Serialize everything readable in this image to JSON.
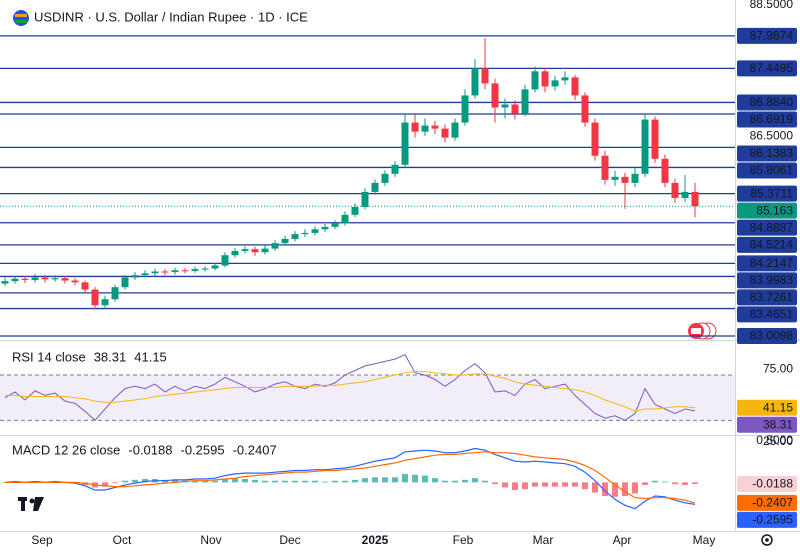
{
  "chart_data": [
    {
      "type": "candlestick",
      "title": "USDINR · U.S. Dollar / Indian Rupee · 1D · ICE",
      "up_color": "#089981",
      "down_color": "#f23645",
      "level_color": "#1f3c9a",
      "last_price_color": "#089981",
      "xlim": [
        -0.5,
        73
      ],
      "ylim": [
        82.944,
        88.583
      ],
      "yticks": [
        {
          "value": 88.5,
          "label": "88.5000"
        },
        {
          "value": 86.5,
          "label": "86.5000"
        }
      ],
      "xticks": [
        {
          "value": 3.7,
          "label": "Sep"
        },
        {
          "value": 11.7,
          "label": "Oct"
        },
        {
          "value": 20.6,
          "label": "Nov"
        },
        {
          "value": 28.5,
          "label": "Dec"
        },
        {
          "value": 37,
          "label": "2025"
        },
        {
          "value": 45.8,
          "label": "Feb"
        },
        {
          "value": 53.8,
          "label": "Mar"
        },
        {
          "value": 61.7,
          "label": "Apr"
        },
        {
          "value": 69.9,
          "label": "May"
        }
      ],
      "levels": [
        87.9874,
        87.4495,
        {
          "value": 86.884,
          "label": "86.8840"
        },
        86.6919,
        86.1383,
        85.8061,
        85.3711,
        84.8887,
        84.5214,
        84.2147,
        83.9983,
        83.7261,
        83.4651,
        83.0098
      ],
      "candles": [
        [
          83.88,
          83.98,
          83.84,
          83.92
        ],
        [
          83.92,
          84.0,
          83.88,
          83.96
        ],
        [
          83.96,
          84.01,
          83.89,
          83.94
        ],
        [
          83.94,
          84.04,
          83.9,
          83.98
        ],
        [
          83.98,
          84.02,
          83.9,
          83.95
        ],
        [
          83.95,
          84.02,
          83.91,
          83.97
        ],
        [
          83.97,
          84.0,
          83.88,
          83.93
        ],
        [
          83.93,
          83.97,
          83.85,
          83.9
        ],
        [
          83.9,
          83.93,
          83.72,
          83.78
        ],
        [
          83.78,
          83.82,
          83.45,
          83.52
        ],
        [
          83.52,
          83.68,
          83.46,
          83.62
        ],
        [
          83.62,
          83.86,
          83.58,
          83.82
        ],
        [
          83.82,
          84.02,
          83.78,
          83.98
        ],
        [
          83.98,
          84.07,
          83.94,
          84.02
        ],
        [
          84.02,
          84.1,
          83.98,
          84.05
        ],
        [
          84.05,
          84.13,
          84.01,
          84.08
        ],
        [
          84.08,
          84.12,
          84.02,
          84.07
        ],
        [
          84.07,
          84.14,
          84.03,
          84.1
        ],
        [
          84.1,
          84.14,
          84.05,
          84.09
        ],
        [
          84.09,
          84.16,
          84.06,
          84.12
        ],
        [
          84.12,
          84.17,
          84.08,
          84.13
        ],
        [
          84.13,
          84.22,
          84.1,
          84.18
        ],
        [
          84.18,
          84.4,
          84.15,
          84.35
        ],
        [
          84.35,
          84.47,
          84.31,
          84.42
        ],
        [
          84.42,
          84.5,
          84.38,
          84.45
        ],
        [
          84.45,
          84.49,
          84.34,
          84.4
        ],
        [
          84.4,
          84.51,
          84.36,
          84.46
        ],
        [
          84.46,
          84.6,
          84.42,
          84.55
        ],
        [
          84.55,
          84.67,
          84.51,
          84.62
        ],
        [
          84.62,
          84.75,
          84.58,
          84.7
        ],
        [
          84.7,
          84.78,
          84.65,
          84.72
        ],
        [
          84.72,
          84.83,
          84.68,
          84.78
        ],
        [
          84.78,
          84.87,
          84.74,
          84.82
        ],
        [
          84.82,
          84.93,
          84.78,
          84.88
        ],
        [
          84.88,
          85.08,
          84.84,
          85.02
        ],
        [
          85.02,
          85.21,
          84.98,
          85.15
        ],
        [
          85.15,
          85.46,
          85.11,
          85.4
        ],
        [
          85.4,
          85.61,
          85.35,
          85.55
        ],
        [
          85.55,
          85.76,
          85.5,
          85.7
        ],
        [
          85.7,
          85.91,
          85.65,
          85.85
        ],
        [
          85.85,
          86.7,
          85.8,
          86.55
        ],
        [
          86.55,
          86.68,
          86.3,
          86.4
        ],
        [
          86.4,
          86.62,
          86.33,
          86.5
        ],
        [
          86.5,
          86.58,
          86.36,
          86.45
        ],
        [
          86.45,
          86.52,
          86.22,
          86.3
        ],
        [
          86.3,
          86.62,
          86.25,
          86.55
        ],
        [
          86.55,
          87.1,
          86.5,
          87.0
        ],
        [
          87.0,
          87.6,
          86.95,
          87.45
        ],
        [
          87.45,
          87.95,
          87.1,
          87.2
        ],
        [
          87.2,
          87.28,
          86.55,
          86.8
        ],
        [
          86.8,
          86.95,
          86.62,
          86.85
        ],
        [
          86.85,
          86.92,
          86.6,
          86.7
        ],
        [
          86.7,
          87.18,
          86.65,
          87.1
        ],
        [
          87.1,
          87.48,
          87.05,
          87.4
        ],
        [
          87.4,
          87.46,
          87.05,
          87.15
        ],
        [
          87.15,
          87.33,
          87.08,
          87.25
        ],
        [
          87.25,
          87.4,
          87.18,
          87.3
        ],
        [
          87.3,
          87.34,
          86.92,
          87.0
        ],
        [
          87.0,
          87.05,
          86.48,
          86.55
        ],
        [
          86.55,
          86.62,
          85.92,
          86.0
        ],
        [
          86.0,
          86.08,
          85.52,
          85.6
        ],
        [
          85.6,
          85.75,
          85.5,
          85.65
        ],
        [
          85.65,
          85.72,
          85.12,
          85.55
        ],
        [
          85.55,
          85.8,
          85.48,
          85.7
        ],
        [
          85.7,
          86.7,
          85.65,
          86.6
        ],
        [
          86.6,
          86.65,
          85.88,
          85.95
        ],
        [
          85.95,
          86.02,
          85.48,
          85.55
        ],
        [
          85.55,
          85.62,
          85.22,
          85.3
        ],
        [
          85.3,
          85.68,
          85.24,
          85.4
        ],
        [
          85.4,
          85.55,
          84.98,
          85.163
        ]
      ]
    },
    {
      "type": "rsi",
      "title": "RSI 14 close",
      "xlim": [
        -0.5,
        73
      ],
      "ylim": [
        19.7,
        100
      ],
      "yticks": [
        {
          "value": 75,
          "label": "75.00"
        },
        {
          "value": 25,
          "label": "25.00"
        }
      ],
      "bands": [
        70,
        30
      ],
      "band_color": "#ede7f6",
      "series": [
        {
          "color": "#7e57c2",
          "values": [
            50,
            55,
            48,
            56,
            52,
            54,
            47,
            45,
            38,
            30,
            40,
            50,
            58,
            60,
            58,
            62,
            55,
            60,
            56,
            60,
            58,
            62,
            68,
            64,
            60,
            55,
            58,
            62,
            64,
            60,
            58,
            62,
            60,
            63,
            70,
            74,
            78,
            80,
            82,
            84,
            88,
            72,
            70,
            66,
            60,
            66,
            74,
            80,
            72,
            55,
            56,
            52,
            62,
            66,
            58,
            60,
            62,
            52,
            44,
            36,
            32,
            34,
            30,
            36,
            58,
            44,
            40,
            36,
            40,
            38.31
          ]
        },
        {
          "color": "#f5b70f",
          "values": [
            52,
            52,
            51,
            51,
            51,
            51,
            51,
            50,
            49,
            47,
            46,
            46,
            47,
            48,
            49,
            51,
            52,
            53,
            54,
            55,
            56,
            57,
            58,
            59,
            59,
            59,
            59,
            59,
            60,
            60,
            60,
            60,
            61,
            61,
            62,
            63,
            64,
            66,
            68,
            70,
            72,
            73,
            73,
            72,
            71,
            70,
            70,
            71,
            71,
            69,
            67,
            64,
            62,
            61,
            60,
            59,
            58,
            57,
            55,
            52,
            48,
            45,
            42,
            38,
            40,
            40,
            41,
            42,
            42,
            41.15
          ]
        }
      ]
    },
    {
      "type": "macd",
      "title": "MACD 12 26 close",
      "xlim": [
        -0.5,
        73
      ],
      "ylim": [
        -0.561,
        0.535
      ],
      "yticks": [
        {
          "value": 0.5,
          "label": "0.5000"
        }
      ],
      "histogram": {
        "up_color": "#26a69a",
        "down_color": "#f7525f",
        "values": [
          0,
          0.01,
          0,
          0.01,
          0,
          0.01,
          0,
          -0.01,
          -0.03,
          -0.06,
          -0.05,
          -0.01,
          0.02,
          0.03,
          0.04,
          0.04,
          0.03,
          0.03,
          0.02,
          0.02,
          0.02,
          0.02,
          0.04,
          0.05,
          0.04,
          0.03,
          0.02,
          0.02,
          0.02,
          0.02,
          0.02,
          0.02,
          0.01,
          0.02,
          0.02,
          0.03,
          0.05,
          0.06,
          0.06,
          0.06,
          0.1,
          0.09,
          0.08,
          0.05,
          0.02,
          0.02,
          0.03,
          0.05,
          0.02,
          -0.02,
          -0.06,
          -0.09,
          -0.08,
          -0.05,
          -0.05,
          -0.05,
          -0.05,
          -0.05,
          -0.08,
          -0.12,
          -0.16,
          -0.17,
          -0.16,
          -0.13,
          -0.03,
          0.02,
          0.01,
          -0.02,
          -0.03,
          -0.0188
        ]
      },
      "series": [
        {
          "color": "#2962ff",
          "values": [
            0,
            0.01,
            0,
            0.01,
            0,
            0.01,
            0,
            -0.01,
            -0.04,
            -0.09,
            -0.09,
            -0.06,
            -0.03,
            -0.01,
            0.01,
            0.02,
            0.02,
            0.03,
            0.03,
            0.04,
            0.04,
            0.05,
            0.08,
            0.1,
            0.11,
            0.11,
            0.11,
            0.12,
            0.13,
            0.14,
            0.14,
            0.15,
            0.15,
            0.16,
            0.17,
            0.19,
            0.22,
            0.25,
            0.27,
            0.29,
            0.36,
            0.37,
            0.38,
            0.37,
            0.35,
            0.35,
            0.37,
            0.4,
            0.38,
            0.33,
            0.29,
            0.25,
            0.24,
            0.25,
            0.24,
            0.23,
            0.22,
            0.19,
            0.12,
            0.02,
            -0.1,
            -0.2,
            -0.27,
            -0.31,
            -0.22,
            -0.16,
            -0.17,
            -0.21,
            -0.24,
            -0.2595
          ]
        },
        {
          "color": "#ff6d00",
          "values": [
            0,
            0,
            0,
            0,
            0,
            0,
            0,
            0,
            -0.01,
            -0.03,
            -0.04,
            -0.05,
            -0.05,
            -0.04,
            -0.03,
            -0.02,
            -0.01,
            0,
            0.01,
            0.02,
            0.02,
            0.03,
            0.04,
            0.05,
            0.07,
            0.08,
            0.09,
            0.1,
            0.11,
            0.12,
            0.12,
            0.13,
            0.14,
            0.14,
            0.15,
            0.16,
            0.17,
            0.19,
            0.21,
            0.23,
            0.26,
            0.28,
            0.3,
            0.32,
            0.33,
            0.33,
            0.34,
            0.35,
            0.36,
            0.35,
            0.35,
            0.34,
            0.32,
            0.3,
            0.29,
            0.28,
            0.27,
            0.24,
            0.2,
            0.14,
            0.06,
            -0.03,
            -0.11,
            -0.18,
            -0.19,
            -0.18,
            -0.18,
            -0.19,
            -0.21,
            -0.2407
          ]
        }
      ]
    }
  ]
}
